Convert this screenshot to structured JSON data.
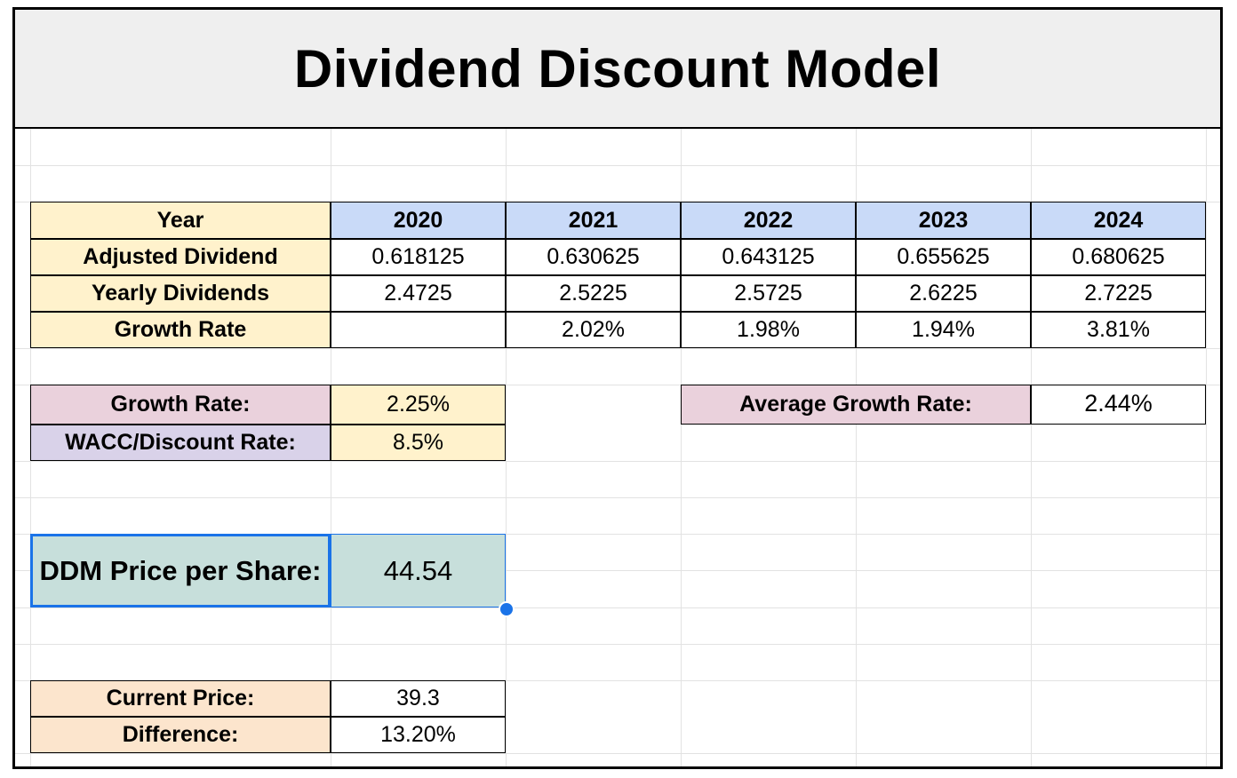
{
  "title": "Dividend Discount Model",
  "table": {
    "year_label": "Year",
    "years": [
      "2020",
      "2021",
      "2022",
      "2023",
      "2024"
    ],
    "rows": [
      {
        "label": "Adjusted Dividend",
        "values": [
          "0.618125",
          "0.630625",
          "0.643125",
          "0.655625",
          "0.680625"
        ]
      },
      {
        "label": "Yearly Dividends",
        "values": [
          "2.4725",
          "2.5225",
          "2.5725",
          "2.6225",
          "2.7225"
        ]
      },
      {
        "label": "Growth Rate",
        "values": [
          "",
          "2.02%",
          "1.98%",
          "1.94%",
          "3.81%"
        ]
      }
    ]
  },
  "inputs": {
    "growth_rate_label": "Growth Rate:",
    "growth_rate_value": "2.25%",
    "wacc_label": "WACC/Discount Rate:",
    "wacc_value": "8.5%"
  },
  "average": {
    "label": "Average Growth Rate:",
    "value": "2.44%"
  },
  "ddm": {
    "label": "DDM Price per Share:",
    "value": "44.54"
  },
  "comparison": {
    "current_price_label": "Current Price:",
    "current_price_value": "39.3",
    "difference_label": "Difference:",
    "difference_value": "13.20%"
  },
  "colors": {
    "label_yellow": "#fff2cc",
    "header_blue": "#c9daf8",
    "label_pink": "#ead1dc",
    "label_lavender": "#d9d2e9",
    "label_peach": "#fce5cd",
    "result_teal": "#c7dfdb",
    "selection_blue": "#1a73e8"
  }
}
